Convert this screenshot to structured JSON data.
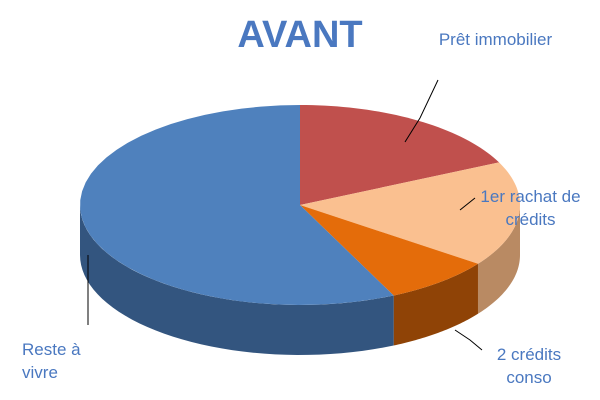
{
  "chart_data": {
    "type": "pie",
    "title": "AVANT",
    "categories": [
      "Prêt immobilier",
      "1er rachat de crédits",
      "2 crédits conso",
      "Reste à vivre"
    ],
    "values": [
      18,
      17,
      8,
      57
    ],
    "colors": [
      "#c0504d",
      "#fac090",
      "#e46c0a",
      "#4f81bd"
    ],
    "side_colors": [
      "#8c3836",
      "#b98a63",
      "#8f4306",
      "#33557f"
    ]
  }
}
